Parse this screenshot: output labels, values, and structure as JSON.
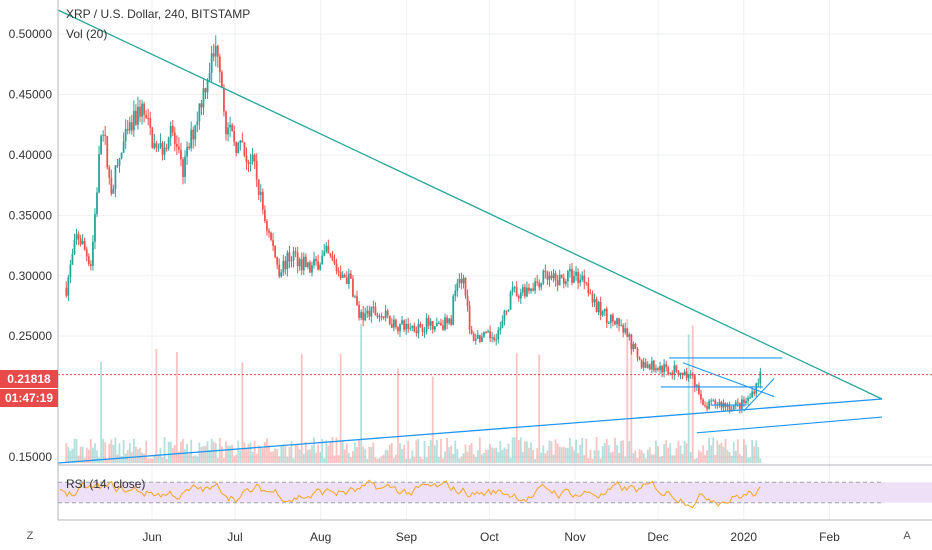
{
  "header": {
    "title": "XRP / U.S. Dollar, 240, BITSTAMP",
    "volume_label": "Vol (20)",
    "rsi_label": "RSI (14, close)"
  },
  "price_badges": {
    "last_price": "0.21818",
    "countdown": "01:47:19"
  },
  "axis_buttons": {
    "left": "Z",
    "right": "A"
  },
  "colors": {
    "up": "#26a69a",
    "down": "#ef5350",
    "trendline": "#26a69a",
    "support": "#2196f3",
    "rsi_line": "#f5a623",
    "rsi_band": "#ede0f7",
    "last_price_line": "#e84a4a"
  },
  "chart_data": {
    "type": "candlestick",
    "y_axis": {
      "ticks": [
        "0.50000",
        "0.45000",
        "0.40000",
        "0.35000",
        "0.30000",
        "0.25000",
        "0.15000"
      ],
      "ylim": [
        0.145,
        0.52
      ]
    },
    "x_axis": {
      "ticks": [
        "Jun",
        "Jul",
        "Aug",
        "Sep",
        "Oct",
        "Nov",
        "Dec",
        "2020",
        "Feb"
      ]
    },
    "price_path": [
      [
        "2019-05-01",
        0.29
      ],
      [
        "2019-05-05",
        0.335
      ],
      [
        "2019-05-10",
        0.31
      ],
      [
        "2019-05-14",
        0.43
      ],
      [
        "2019-05-17",
        0.37
      ],
      [
        "2019-05-22",
        0.41
      ],
      [
        "2019-05-28",
        0.44
      ],
      [
        "2019-06-03",
        0.4
      ],
      [
        "2019-06-08",
        0.42
      ],
      [
        "2019-06-12",
        0.385
      ],
      [
        "2019-06-17",
        0.43
      ],
      [
        "2019-06-22",
        0.475
      ],
      [
        "2019-06-25",
        0.49
      ],
      [
        "2019-06-28",
        0.42
      ],
      [
        "2019-07-03",
        0.405
      ],
      [
        "2019-07-08",
        0.39
      ],
      [
        "2019-07-12",
        0.345
      ],
      [
        "2019-07-17",
        0.305
      ],
      [
        "2019-07-22",
        0.318
      ],
      [
        "2019-07-28",
        0.305
      ],
      [
        "2019-08-03",
        0.318
      ],
      [
        "2019-08-07",
        0.305
      ],
      [
        "2019-08-12",
        0.295
      ],
      [
        "2019-08-15",
        0.265
      ],
      [
        "2019-08-20",
        0.27
      ],
      [
        "2019-08-25",
        0.265
      ],
      [
        "2019-08-30",
        0.258
      ],
      [
        "2019-09-05",
        0.258
      ],
      [
        "2019-09-12",
        0.262
      ],
      [
        "2019-09-17",
        0.26
      ],
      [
        "2019-09-19",
        0.3
      ],
      [
        "2019-09-22",
        0.298
      ],
      [
        "2019-09-24",
        0.25
      ],
      [
        "2019-09-30",
        0.248
      ],
      [
        "2019-10-05",
        0.255
      ],
      [
        "2019-10-09",
        0.285
      ],
      [
        "2019-10-15",
        0.29
      ],
      [
        "2019-10-20",
        0.298
      ],
      [
        "2019-10-25",
        0.295
      ],
      [
        "2019-10-30",
        0.3
      ],
      [
        "2019-11-05",
        0.298
      ],
      [
        "2019-11-08",
        0.275
      ],
      [
        "2019-11-15",
        0.262
      ],
      [
        "2019-11-20",
        0.25
      ],
      [
        "2019-11-24",
        0.228
      ],
      [
        "2019-11-29",
        0.225
      ],
      [
        "2019-12-05",
        0.222
      ],
      [
        "2019-12-10",
        0.22
      ],
      [
        "2019-12-15",
        0.21
      ],
      [
        "2019-12-17",
        0.19
      ],
      [
        "2019-12-22",
        0.195
      ],
      [
        "2019-12-27",
        0.192
      ],
      [
        "2019-12-31",
        0.193
      ],
      [
        "2020-01-03",
        0.198
      ],
      [
        "2020-01-07",
        0.218
      ]
    ],
    "annotations": {
      "last_price": 0.21818,
      "descending_trendline": [
        [
          "2019-04-28",
          0.52
        ],
        [
          "2020-02-20",
          0.198
        ]
      ],
      "ascending_support": [
        [
          "2019-04-28",
          0.145
        ],
        [
          "2020-02-20",
          0.198
        ]
      ],
      "horizontal_levels": [
        0.232,
        0.208,
        0.193
      ]
    },
    "rsi": {
      "upper_band": 70,
      "lower_band": 30
    }
  }
}
